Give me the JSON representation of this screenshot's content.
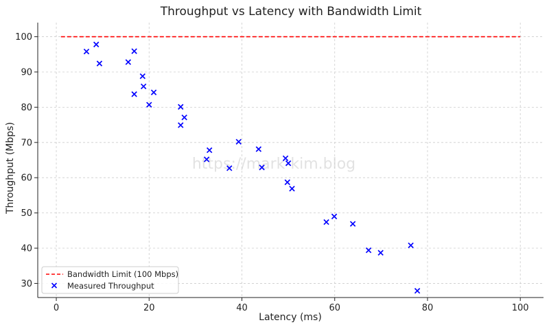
{
  "chart_data": {
    "type": "scatter",
    "title": "Throughput vs Latency with Bandwidth Limit",
    "xlabel": "Latency (ms)",
    "ylabel": "Throughput (Mbps)",
    "xlim": [
      -4,
      105
    ],
    "ylim": [
      26,
      104
    ],
    "xticks": [
      0,
      20,
      40,
      60,
      80,
      100
    ],
    "yticks": [
      30,
      40,
      50,
      60,
      70,
      80,
      90,
      100
    ],
    "grid": true,
    "legend_position": "lower-left",
    "watermark": "https://mark-kim.blog",
    "series": [
      {
        "name": "Bandwidth Limit (100 Mbps)",
        "kind": "line",
        "style": "dashed",
        "color": "#ff0000",
        "x": [
          1,
          100
        ],
        "y": [
          100,
          100
        ]
      },
      {
        "name": "Measured Throughput",
        "kind": "scatter",
        "marker": "x",
        "color": "#0000ff",
        "points": [
          [
            6.5,
            95.8
          ],
          [
            8.6,
            97.8
          ],
          [
            9.3,
            92.4
          ],
          [
            15.5,
            92.8
          ],
          [
            16.8,
            95.9
          ],
          [
            18.6,
            88.8
          ],
          [
            18.8,
            85.9
          ],
          [
            16.8,
            83.7
          ],
          [
            21.0,
            84.2
          ],
          [
            20.0,
            80.7
          ],
          [
            26.8,
            80.1
          ],
          [
            27.6,
            77.1
          ],
          [
            26.8,
            74.9
          ],
          [
            33.0,
            67.8
          ],
          [
            32.4,
            65.2
          ],
          [
            37.3,
            62.7
          ],
          [
            39.3,
            70.2
          ],
          [
            43.6,
            68.1
          ],
          [
            44.3,
            62.9
          ],
          [
            49.4,
            65.5
          ],
          [
            50.0,
            64.1
          ],
          [
            49.8,
            58.7
          ],
          [
            50.8,
            56.9
          ],
          [
            58.2,
            47.4
          ],
          [
            59.9,
            49.0
          ],
          [
            63.9,
            46.9
          ],
          [
            67.3,
            39.4
          ],
          [
            69.9,
            38.7
          ],
          [
            76.4,
            40.8
          ],
          [
            77.8,
            27.9
          ]
        ]
      }
    ]
  }
}
